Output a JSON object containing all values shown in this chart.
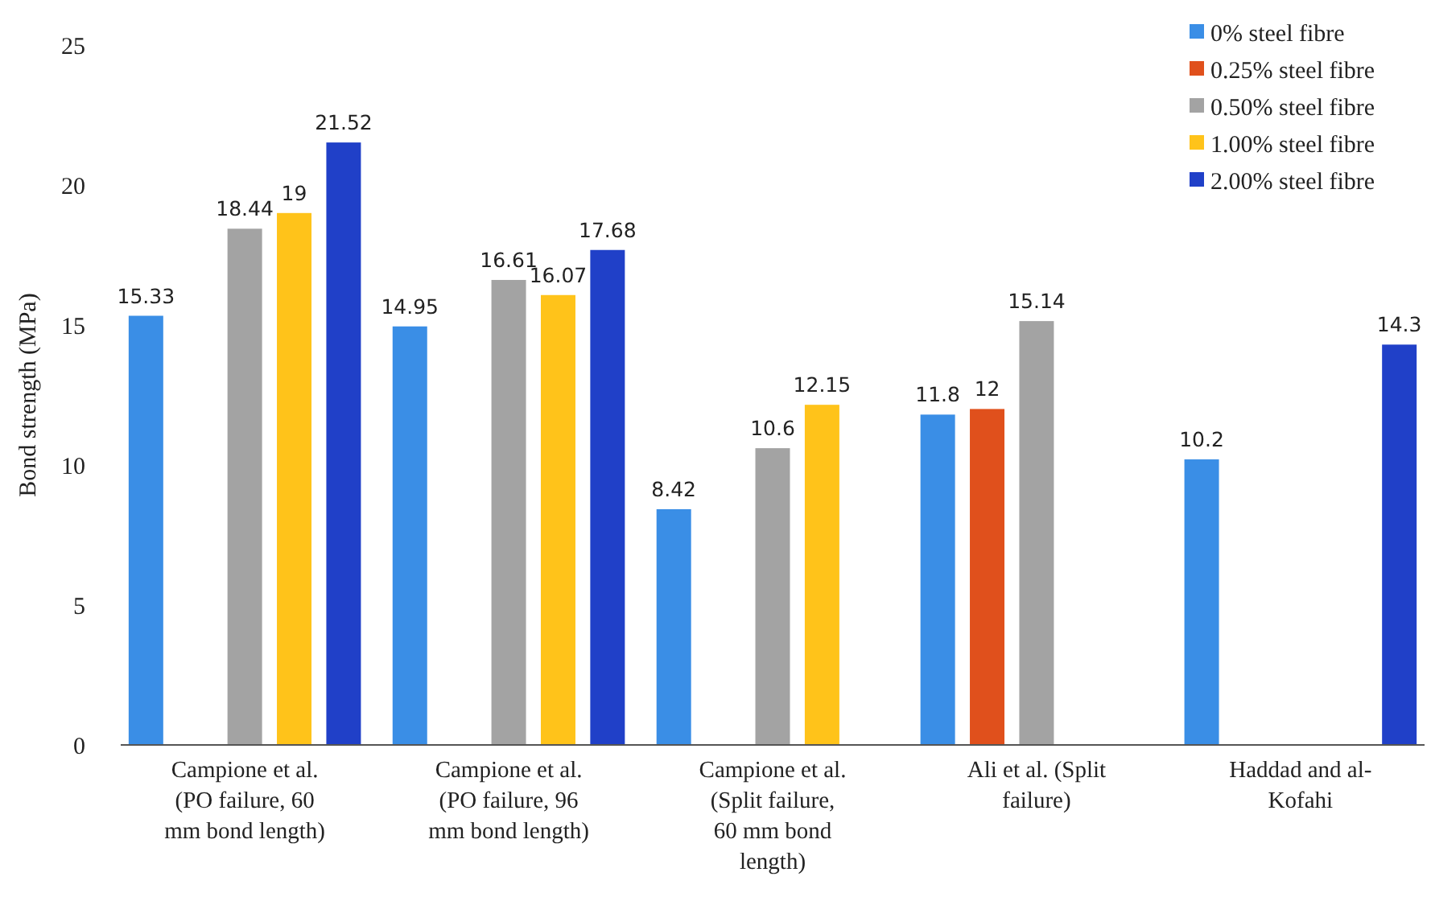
{
  "chart_data": {
    "type": "bar",
    "ylabel": "Bond strength (MPa)",
    "categories": [
      "Campione et al. (PO failure, 60 mm bond length)",
      "Campione et al. (PO failure, 96 mm bond length)",
      "Campione et al. (Split failure, 60 mm bond length)",
      "Ali et al. (Split failure)",
      "Haddad and al-Kofahi"
    ],
    "series": [
      {
        "name": "0% steel fibre",
        "color": "#3a8ee6",
        "values": [
          15.33,
          14.95,
          8.42,
          11.8,
          10.2
        ]
      },
      {
        "name": "0.25% steel fibre",
        "color": "#e0501c",
        "values": [
          null,
          null,
          null,
          12,
          null
        ]
      },
      {
        "name": "0.50% steel fibre",
        "color": "#a3a3a3",
        "values": [
          18.44,
          16.61,
          10.6,
          15.14,
          null
        ]
      },
      {
        "name": "1.00% steel fibre",
        "color": "#ffc31a",
        "values": [
          19,
          16.07,
          12.15,
          null,
          null
        ]
      },
      {
        "name": "2.00% steel fibre",
        "color": "#2040c8",
        "values": [
          21.52,
          17.68,
          null,
          null,
          14.3
        ]
      }
    ],
    "ylim": [
      0,
      25
    ],
    "yticks": [
      0,
      5,
      10,
      15,
      20,
      25
    ],
    "data_labels": true,
    "legend": "top right",
    "grid": false
  }
}
